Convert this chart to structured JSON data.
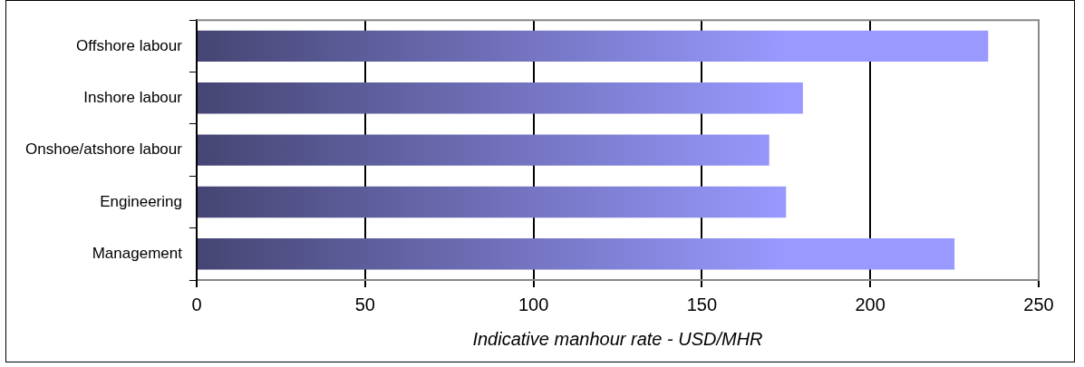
{
  "chart_data": {
    "type": "bar",
    "orientation": "horizontal",
    "xlabel": "Indicative manhour rate - USD/MHR",
    "categories": [
      "Offshore labour",
      "Inshore labour",
      "Onshoe/atshore labour",
      "Engineering",
      "Management"
    ],
    "values": [
      235,
      180,
      170,
      175,
      225
    ],
    "color": "#9999ff",
    "xlim": [
      0,
      250
    ],
    "xticks": [
      0,
      50,
      100,
      150,
      200,
      250
    ],
    "grid": "x",
    "legend": false
  }
}
